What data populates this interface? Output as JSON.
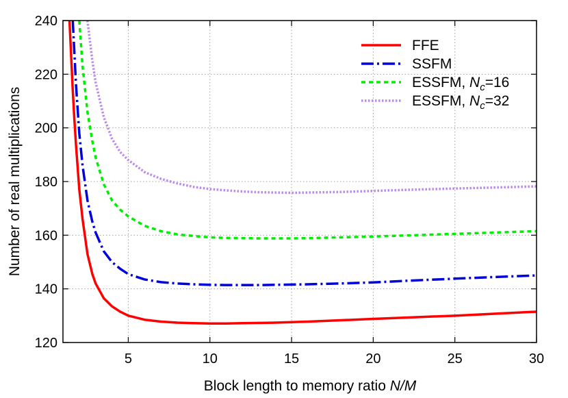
{
  "chart_data": {
    "type": "line",
    "xlabel": "Block length to memory ratio ",
    "xlabel_var": "N/M",
    "ylabel": "Number of real multiplications",
    "xlim": [
      1,
      30
    ],
    "ylim": [
      120,
      240
    ],
    "xticks": [
      5,
      10,
      15,
      20,
      25,
      30
    ],
    "yticks": [
      120,
      140,
      160,
      180,
      200,
      220,
      240
    ],
    "grid": true,
    "legend_position": "top-right",
    "series": [
      {
        "name": "FFE",
        "name_sub": "",
        "name_suffix": "",
        "color": "#ff0000",
        "style": "solid",
        "x": [
          1.4,
          1.5,
          1.6,
          1.7,
          1.8,
          2,
          2.2,
          2.5,
          2.8,
          3,
          3.5,
          4,
          4.5,
          5,
          6,
          7,
          8,
          9,
          10,
          11,
          12,
          13,
          14,
          15,
          16,
          18,
          20,
          22,
          25,
          27,
          30
        ],
        "y": [
          240,
          227,
          214,
          203,
          193.5,
          177,
          166,
          153,
          145.5,
          142,
          136.5,
          133.5,
          131.5,
          130,
          128.5,
          127.8,
          127.4,
          127.2,
          127.1,
          127.1,
          127.2,
          127.3,
          127.4,
          127.6,
          127.8,
          128.3,
          128.8,
          129.3,
          130,
          130.6,
          131.5
        ]
      },
      {
        "name": "SSFM",
        "name_sub": "",
        "name_suffix": "",
        "color": "#0000dd",
        "style": "dashdot",
        "x": [
          1.6,
          1.7,
          1.8,
          2,
          2.2,
          2.5,
          2.8,
          3,
          3.5,
          4,
          4.5,
          5,
          6,
          7,
          8,
          9,
          10,
          11,
          12,
          13,
          14,
          15,
          16,
          18,
          20,
          22,
          25,
          27,
          30
        ],
        "y": [
          240,
          228,
          216,
          198,
          186,
          173,
          165,
          161,
          154,
          150,
          147.5,
          145.5,
          143.5,
          142.5,
          142,
          141.7,
          141.5,
          141.4,
          141.4,
          141.4,
          141.5,
          141.6,
          141.7,
          142,
          142.4,
          143,
          143.8,
          144.3,
          145
        ]
      },
      {
        "name": "ESSFM, ",
        "name_sub": "c",
        "name_suffix": "=16",
        "color": "#00ee00",
        "style": "dashed",
        "x": [
          2,
          2.2,
          2.5,
          2.8,
          3,
          3.5,
          4,
          4.5,
          5,
          6,
          7,
          8,
          9,
          10,
          11,
          12,
          13,
          14,
          15,
          16,
          18,
          20,
          22,
          25,
          27,
          30
        ],
        "y": [
          240,
          223,
          206,
          195,
          189,
          179,
          173,
          169.5,
          167,
          163.5,
          161.5,
          160.3,
          159.7,
          159.2,
          159,
          158.9,
          158.8,
          158.8,
          158.8,
          158.9,
          159.2,
          159.5,
          159.9,
          160.5,
          160.9,
          161.5
        ]
      },
      {
        "name": "ESSFM, ",
        "name_sub": "c",
        "name_suffix": "=32",
        "color": "#bb88ee",
        "style": "dotted",
        "x": [
          2.5,
          2.8,
          3,
          3.5,
          4,
          4.5,
          5,
          6,
          7,
          8,
          9,
          10,
          11,
          12,
          13,
          14,
          15,
          16,
          18,
          20,
          22,
          25,
          27,
          30
        ],
        "y": [
          240,
          225,
          217,
          204,
          196,
          191,
          188,
          183.5,
          181,
          179.3,
          178,
          177.2,
          176.7,
          176.3,
          176,
          175.9,
          175.8,
          175.9,
          176.1,
          176.5,
          176.9,
          177.4,
          177.7,
          178.2
        ]
      }
    ]
  }
}
